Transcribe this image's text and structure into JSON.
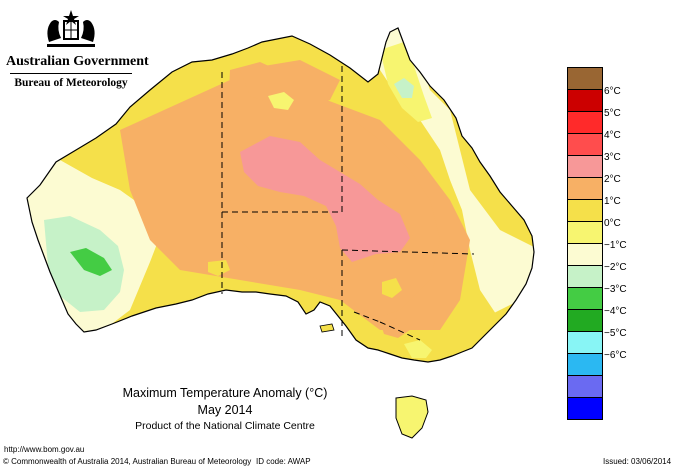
{
  "agency": {
    "government": "Australian Government",
    "bureau": "Bureau of Meteorology"
  },
  "map": {
    "title": "Maximum Temperature Anomaly (°C)",
    "period": "May 2014",
    "product": "Product of the National Climate Centre"
  },
  "legend": {
    "colors": [
      "#996633",
      "#cc0000",
      "#ff2a2a",
      "#ff4d4d",
      "#f79898",
      "#f7b065",
      "#f5e04a",
      "#f7f570",
      "#fcfbd2",
      "#c6f2c8",
      "#44cc44",
      "#22aa22",
      "#88f5f5",
      "#2bb8f2",
      "#6a6af2",
      "#0000ff"
    ],
    "labels": [
      "6°C",
      "5°C",
      "4°C",
      "3°C",
      "2°C",
      "1°C",
      "0°C",
      "−1°C",
      "−2°C",
      "−3°C",
      "−4°C",
      "−5°C",
      "−6°C"
    ]
  },
  "footer": {
    "url": "http://www.bom.gov.au",
    "copyright": "© Commonwealth of Australia 2014, Australian Bureau of Meteorology",
    "id_code": "ID code: AWAP",
    "issued": "Issued: 03/06/2014"
  }
}
